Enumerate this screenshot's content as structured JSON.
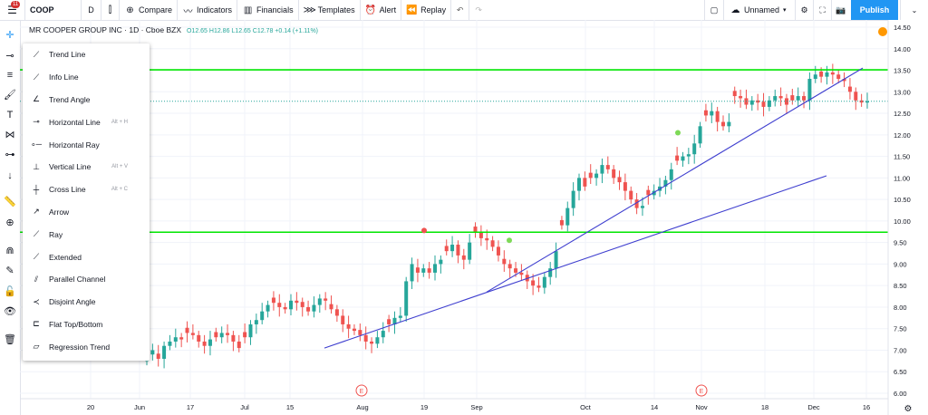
{
  "topbar": {
    "notification_count": "11",
    "symbol": "COOP",
    "interval": "D",
    "compare": "Compare",
    "indicators": "Indicators",
    "financials": "Financials",
    "templates": "Templates",
    "alert": "Alert",
    "replay": "Replay",
    "layout_name": "Unnamed",
    "publish": "Publish"
  },
  "legend": {
    "title": "MR COOPER GROUP INC · 1D · Cboe BZX",
    "ohlc": "O12.65  H12.86  L12.65  C12.78  +0.14 (+1.11%)"
  },
  "drawing_menu": [
    {
      "label": "Trend Line",
      "icon": "trend-line-icon",
      "shortcut": ""
    },
    {
      "label": "Info Line",
      "icon": "info-line-icon",
      "shortcut": ""
    },
    {
      "label": "Trend Angle",
      "icon": "trend-angle-icon",
      "shortcut": ""
    },
    {
      "label": "Horizontal Line",
      "icon": "horizontal-line-icon",
      "shortcut": "Alt + H"
    },
    {
      "label": "Horizontal Ray",
      "icon": "horizontal-ray-icon",
      "shortcut": ""
    },
    {
      "label": "Vertical Line",
      "icon": "vertical-line-icon",
      "shortcut": "Alt + V"
    },
    {
      "label": "Cross Line",
      "icon": "cross-line-icon",
      "shortcut": "Alt + C"
    },
    {
      "label": "Arrow",
      "icon": "arrow-icon",
      "shortcut": ""
    },
    {
      "label": "Ray",
      "icon": "ray-icon",
      "shortcut": ""
    },
    {
      "label": "Extended",
      "icon": "extended-line-icon",
      "shortcut": ""
    },
    {
      "label": "Parallel Channel",
      "icon": "parallel-channel-icon",
      "shortcut": ""
    },
    {
      "label": "Disjoint Angle",
      "icon": "disjoint-angle-icon",
      "shortcut": ""
    },
    {
      "label": "Flat Top/Bottom",
      "icon": "flat-top-bottom-icon",
      "shortcut": ""
    },
    {
      "label": "Regression Trend",
      "icon": "regression-trend-icon",
      "shortcut": ""
    }
  ],
  "colors": {
    "up": "#26a69a",
    "down": "#ef5350",
    "hline": "#00e600",
    "trendline": "#3f3fcf",
    "accent": "#2196f3"
  },
  "chart_data": {
    "type": "candlestick",
    "y_ticks": [
      "14.50",
      "14.00",
      "13.50",
      "13.00",
      "12.50",
      "12.00",
      "11.50",
      "11.00",
      "10.50",
      "10.00",
      "9.50",
      "9.00",
      "8.50",
      "8.00",
      "7.50",
      "7.00",
      "6.50",
      "6.00"
    ],
    "x_ticks": [
      "20",
      "Jun",
      "17",
      "Jul",
      "15",
      "Aug",
      "19",
      "Sep",
      "Oct",
      "14",
      "Nov",
      "18",
      "Dec",
      "16"
    ],
    "ylim": [
      5.9,
      14.6
    ],
    "horizontal_lines": [
      {
        "label": "13.51",
        "value": 13.51
      },
      {
        "label": "9.74",
        "value": 9.74
      }
    ],
    "last_price": {
      "label": "12.78",
      "value": 12.78
    },
    "event_markers": [
      "E",
      "E"
    ],
    "close_series": [
      6.9,
      7.0,
      6.8,
      7.1,
      7.2,
      7.3,
      7.25,
      7.4,
      7.35,
      7.2,
      7.1,
      7.25,
      7.3,
      7.4,
      7.35,
      7.2,
      7.05,
      7.3,
      7.6,
      7.7,
      7.9,
      8.05,
      8.1,
      8.0,
      7.95,
      8.15,
      8.1,
      8.0,
      7.9,
      8.05,
      8.2,
      8.15,
      7.95,
      7.8,
      7.6,
      7.5,
      7.45,
      7.35,
      7.2,
      7.15,
      7.3,
      7.45,
      7.6,
      7.75,
      7.8,
      8.6,
      9.0,
      8.8,
      8.9,
      8.8,
      9.0,
      9.1,
      9.3,
      9.45,
      9.2,
      9.1,
      9.5,
      9.75,
      9.6,
      9.55,
      9.4,
      9.2,
      9.0,
      8.9,
      8.8,
      8.75,
      8.6,
      8.5,
      8.45,
      8.7,
      8.9,
      9.3,
      9.9,
      10.3,
      10.7,
      11.0,
      10.8,
      11.0,
      11.1,
      11.3,
      11.2,
      11.0,
      10.9,
      10.7,
      10.5,
      10.3,
      10.35,
      10.6,
      10.7,
      10.8,
      10.95,
      11.2,
      11.4,
      11.5,
      11.55,
      11.8,
      12.2,
      12.45,
      12.55,
      12.3,
      12.2,
      12.3,
      12.9,
      12.85,
      12.7,
      12.8,
      12.75,
      12.65,
      12.8,
      12.9,
      12.85,
      12.7,
      12.8,
      12.9,
      12.8,
      13.3,
      13.4,
      13.35,
      13.45,
      13.4,
      13.3,
      13.25,
      13.0,
      12.8,
      12.75,
      12.78
    ],
    "trend_lines": [
      {
        "from": [
          "Aug 2",
          8.35
        ],
        "to": [
          "Dec 16",
          13.55
        ]
      },
      {
        "from": [
          "Jul 26",
          7.05
        ],
        "to": [
          "Dec 8",
          11.05
        ]
      }
    ]
  }
}
